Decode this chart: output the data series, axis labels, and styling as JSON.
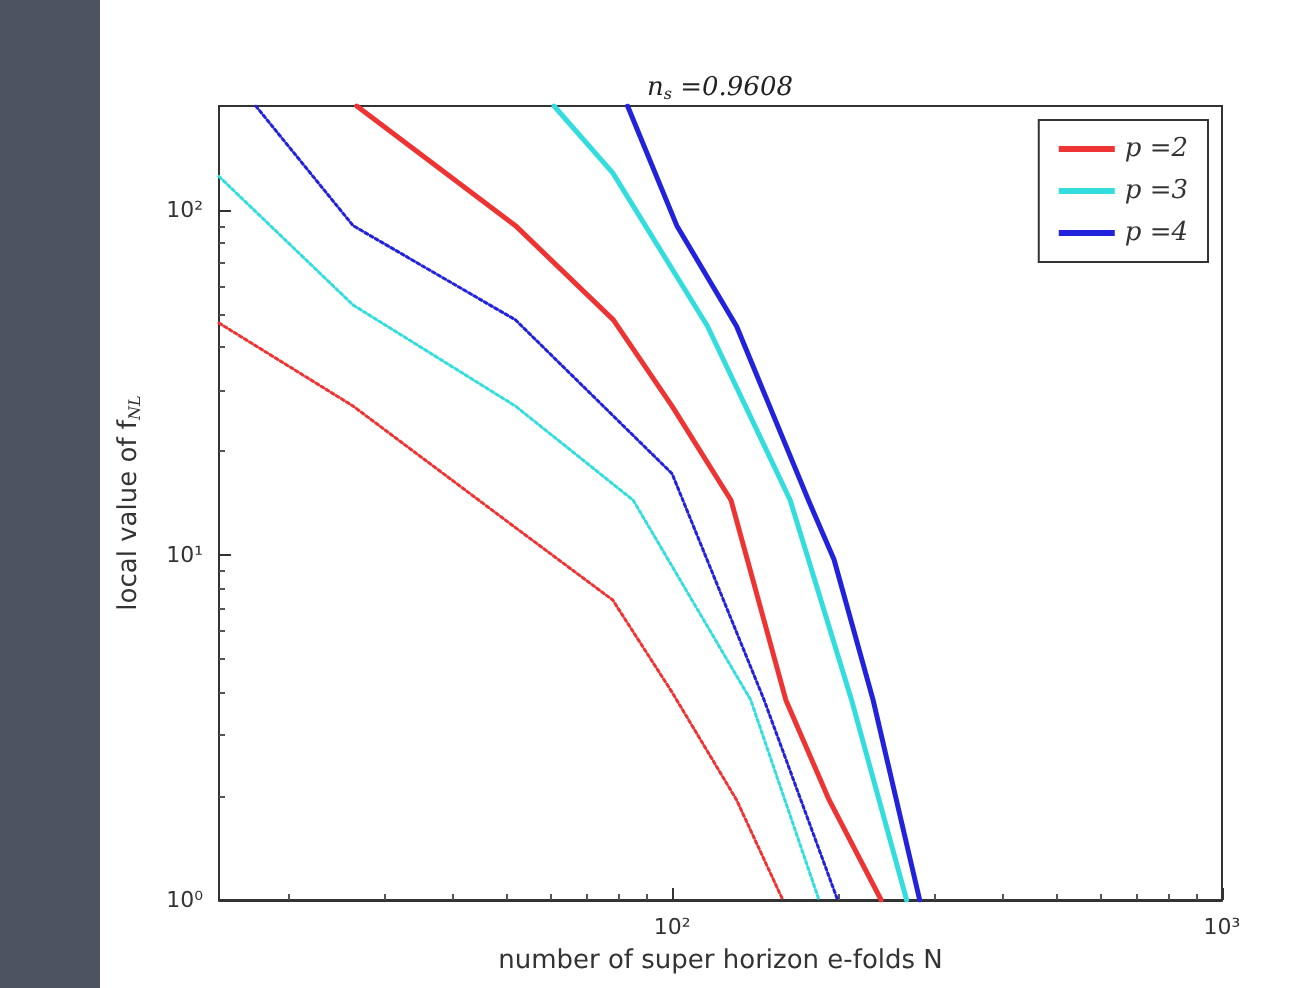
{
  "chart_data": {
    "type": "line",
    "title": "n$_{s}$ =0.9608",
    "xlabel": "number of super horizon e-folds N",
    "ylabel": "local value of f$_{NL}$",
    "log": "xy",
    "marker": "none",
    "legend": "top right",
    "xlim": [
      15,
      1000
    ],
    "xticks": [
      {
        "value": 100,
        "label": "10²"
      },
      {
        "value": 1000,
        "label": "10³"
      }
    ],
    "ylim": [
      1,
      200
    ],
    "yticks": [
      {
        "value": 1,
        "label": "10⁰"
      },
      {
        "value": 10,
        "label": "10¹"
      },
      {
        "value": 100,
        "label": "10²"
      }
    ],
    "series": [
      {
        "name": "p =2",
        "color": "#ee3333",
        "line_style": "solid",
        "x": [
          26.7,
          51.9,
          78.2,
          100,
          128,
          161,
          193,
          240
        ],
        "values": [
          200,
          90,
          48,
          27,
          14.4,
          3.8,
          1.95,
          1
        ]
      },
      {
        "name": "p =3",
        "color": "#33dddd",
        "line_style": "solid",
        "x": [
          61,
          78,
          116,
          164,
          177,
          212,
          267
        ],
        "values": [
          200,
          128,
          46,
          14.4,
          9.7,
          3.8,
          1
        ]
      },
      {
        "name": "p =4",
        "color": "#2222dd",
        "line_style": "solid",
        "x": [
          83,
          102,
          131,
          177,
          197,
          232,
          282
        ],
        "values": [
          200,
          90,
          46,
          14.4,
          9.7,
          3.8,
          1
        ]
      },
      {
        "color": "#ee3333",
        "line_style": "dotted",
        "x": [
          15,
          26.3,
          51.9,
          78,
          100,
          131,
          159
        ],
        "values": [
          47,
          27,
          12,
          7.4,
          4,
          1.95,
          1
        ]
      },
      {
        "color": "#33dddd",
        "line_style": "dotted",
        "x": [
          15,
          26.3,
          51.9,
          85,
          139,
          185
        ],
        "values": [
          125,
          53,
          27,
          14.4,
          3.8,
          1
        ]
      },
      {
        "color": "#2222dd",
        "line_style": "dotted",
        "x": [
          17.5,
          26.3,
          51.9,
          100,
          147,
          200
        ],
        "values": [
          200,
          90,
          48,
          17.2,
          3.8,
          1
        ]
      }
    ]
  }
}
